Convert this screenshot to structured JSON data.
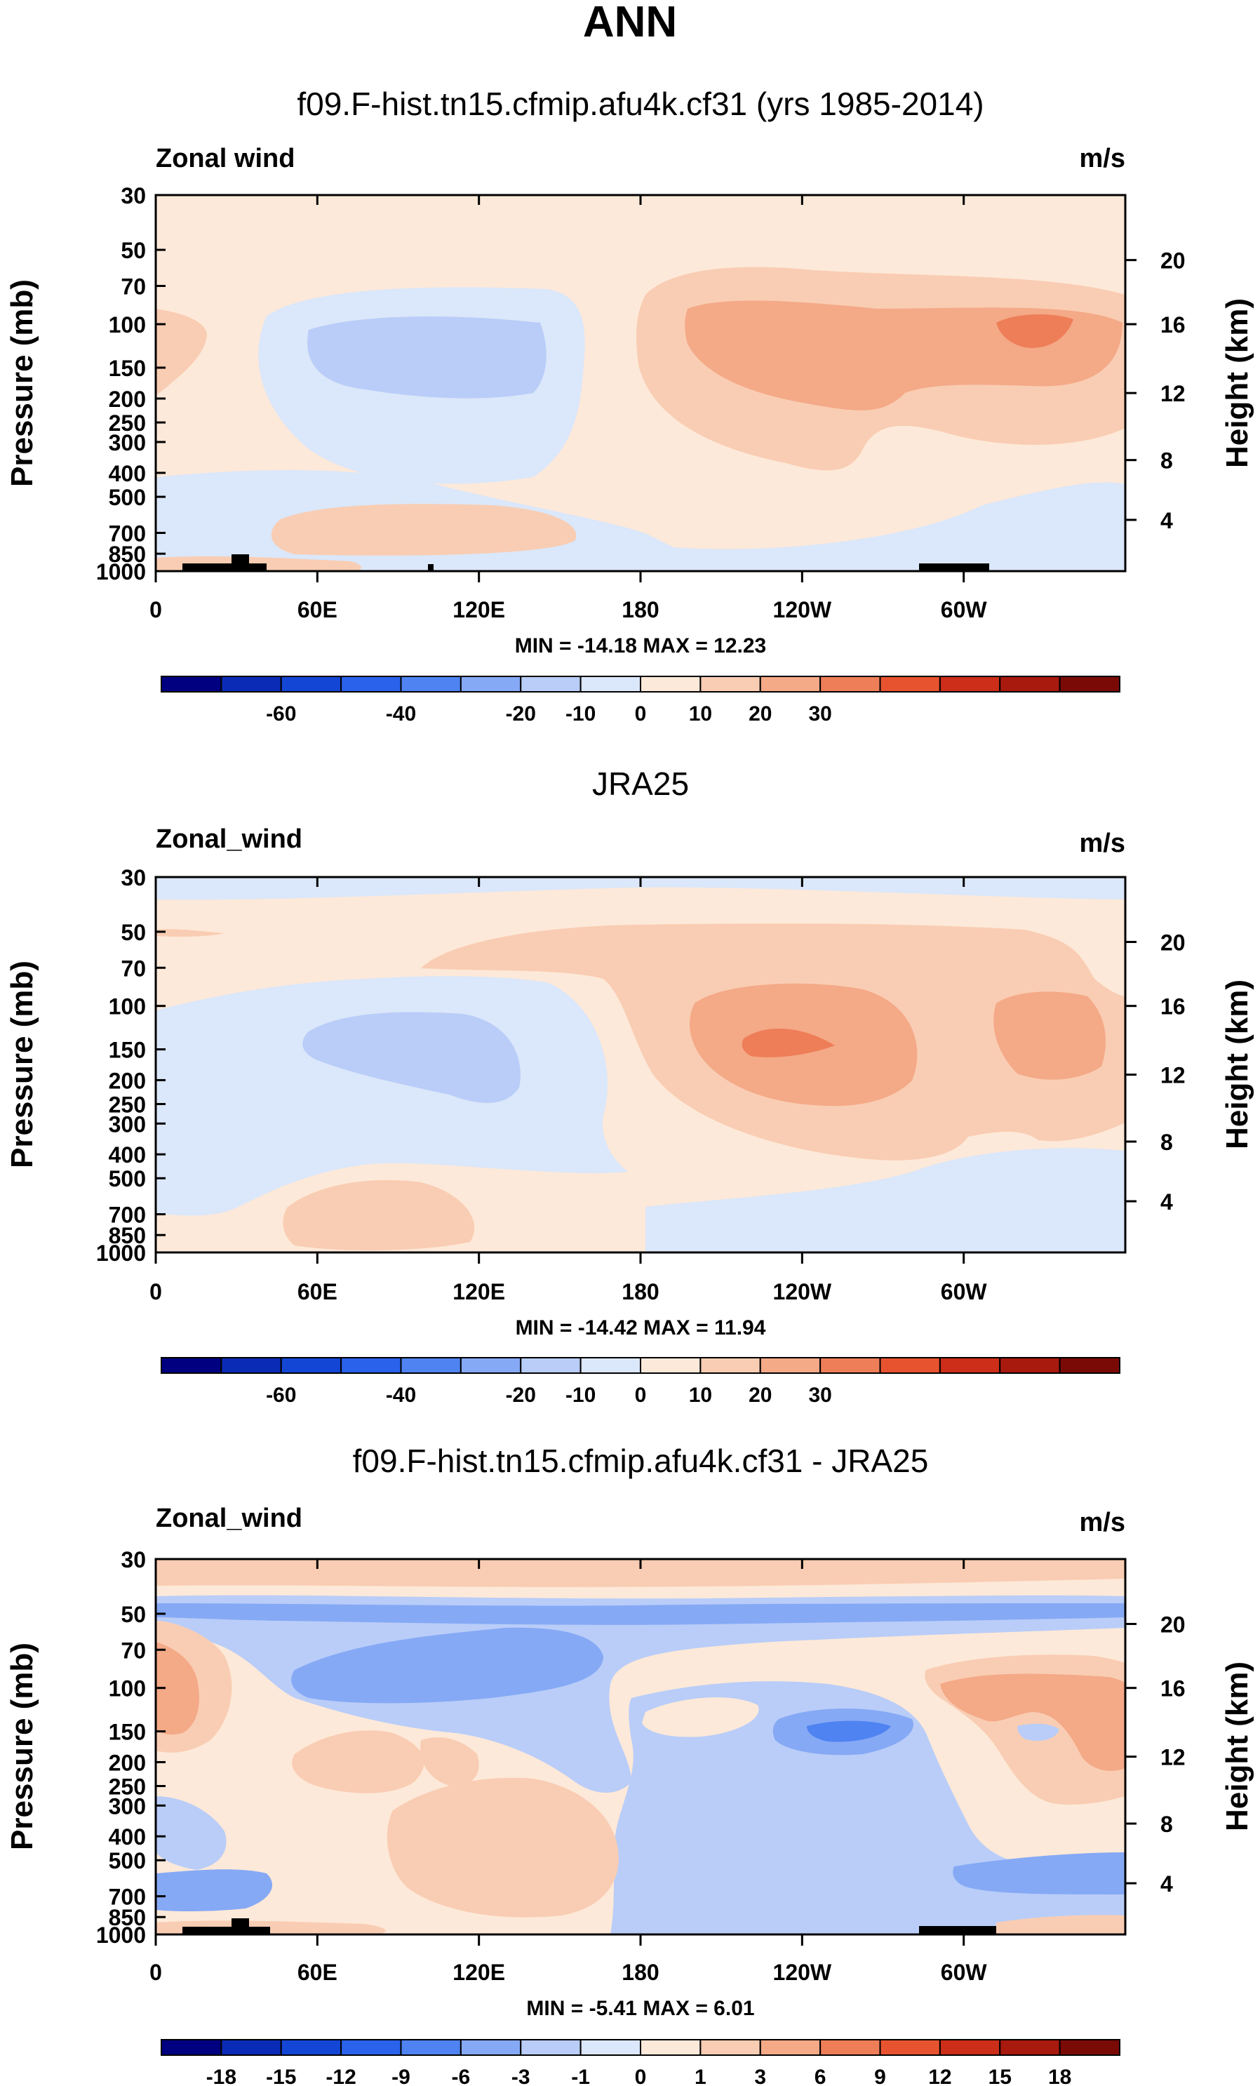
{
  "figure_title": "ANN",
  "units_label": "m/s",
  "colors": {
    "frame": "#000000",
    "topography": "#000000"
  },
  "chart_data": [
    {
      "type": "heatmap",
      "title": "f09.F-hist.tn15.cfmip.afu4k.cf31 (yrs 1985-2014)",
      "variable_label": "Zonal wind",
      "units": "m/s",
      "xlabel": "",
      "ylabel": "Pressure (mb)",
      "y2label": "Height (km)",
      "x_tick_labels": [
        "0",
        "60E",
        "120E",
        "180",
        "120W",
        "60W"
      ],
      "y_tick_labels": [
        "30",
        "50",
        "70",
        "100",
        "150",
        "200",
        "250",
        "300",
        "400",
        "500",
        "700",
        "850",
        "1000"
      ],
      "y2_tick_labels": [
        "20",
        "16",
        "12",
        "8",
        "4"
      ],
      "min_max_text": "MIN = -14.18  MAX =  12.23",
      "colorbar_labels": [
        "-60",
        "-40",
        "-20",
        "-10",
        "0",
        "10",
        "20",
        "30"
      ],
      "colorbar_colors": [
        "#000080",
        "#0a2bb5",
        "#1446d6",
        "#2a62eb",
        "#4f83f2",
        "#86a9f5",
        "#b9cdf8",
        "#dbe7fa",
        "#fde9d9",
        "#f9cdb3",
        "#f4a987",
        "#ee7e58",
        "#e8532f",
        "#cc2e19",
        "#a8190e",
        "#7a0a05"
      ],
      "contour_levels": [
        -80,
        -70,
        -60,
        -50,
        -40,
        -30,
        -20,
        -10,
        0,
        10,
        20,
        30,
        40,
        50,
        60,
        80
      ],
      "min": -14.18,
      "max": 12.23
    },
    {
      "type": "heatmap",
      "title": "JRA25",
      "variable_label": "Zonal_wind",
      "units": "m/s",
      "xlabel": "",
      "ylabel": "Pressure (mb)",
      "y2label": "Height (km)",
      "x_tick_labels": [
        "0",
        "60E",
        "120E",
        "180",
        "120W",
        "60W"
      ],
      "y_tick_labels": [
        "30",
        "50",
        "70",
        "100",
        "150",
        "200",
        "250",
        "300",
        "400",
        "500",
        "700",
        "850",
        "1000"
      ],
      "y2_tick_labels": [
        "20",
        "16",
        "12",
        "8",
        "4"
      ],
      "min_max_text": "MIN = -14.42  MAX =  11.94",
      "colorbar_labels": [
        "-60",
        "-40",
        "-20",
        "-10",
        "0",
        "10",
        "20",
        "30"
      ],
      "colorbar_colors": [
        "#000080",
        "#0a2bb5",
        "#1446d6",
        "#2a62eb",
        "#4f83f2",
        "#86a9f5",
        "#b9cdf8",
        "#dbe7fa",
        "#fde9d9",
        "#f9cdb3",
        "#f4a987",
        "#ee7e58",
        "#e8532f",
        "#cc2e19",
        "#a8190e",
        "#7a0a05"
      ],
      "min": -14.42,
      "max": 11.94
    },
    {
      "type": "heatmap",
      "title": "f09.F-hist.tn15.cfmip.afu4k.cf31 - JRA25",
      "variable_label": "Zonal_wind",
      "units": "m/s",
      "xlabel": "",
      "ylabel": "Pressure (mb)",
      "y2label": "Height (km)",
      "x_tick_labels": [
        "0",
        "60E",
        "120E",
        "180",
        "120W",
        "60W"
      ],
      "y_tick_labels": [
        "30",
        "50",
        "70",
        "100",
        "150",
        "200",
        "250",
        "300",
        "400",
        "500",
        "700",
        "850",
        "1000"
      ],
      "y2_tick_labels": [
        "20",
        "16",
        "12",
        "8",
        "4"
      ],
      "min_max_text": "MIN = -5.41  MAX =  6.01",
      "colorbar_labels": [
        "-18",
        "-15",
        "-12",
        "-9",
        "-6",
        "-3",
        "-1",
        "0",
        "1",
        "3",
        "6",
        "9",
        "12",
        "15",
        "18"
      ],
      "colorbar_colors": [
        "#000080",
        "#0a2bb5",
        "#1446d6",
        "#2a62eb",
        "#4f83f2",
        "#86a9f5",
        "#b9cdf8",
        "#dbe7fa",
        "#fde9d9",
        "#f9cdb3",
        "#f4a987",
        "#ee7e58",
        "#e8532f",
        "#cc2e19",
        "#a8190e",
        "#7a0a05"
      ],
      "min": -5.41,
      "max": 6.01
    }
  ]
}
